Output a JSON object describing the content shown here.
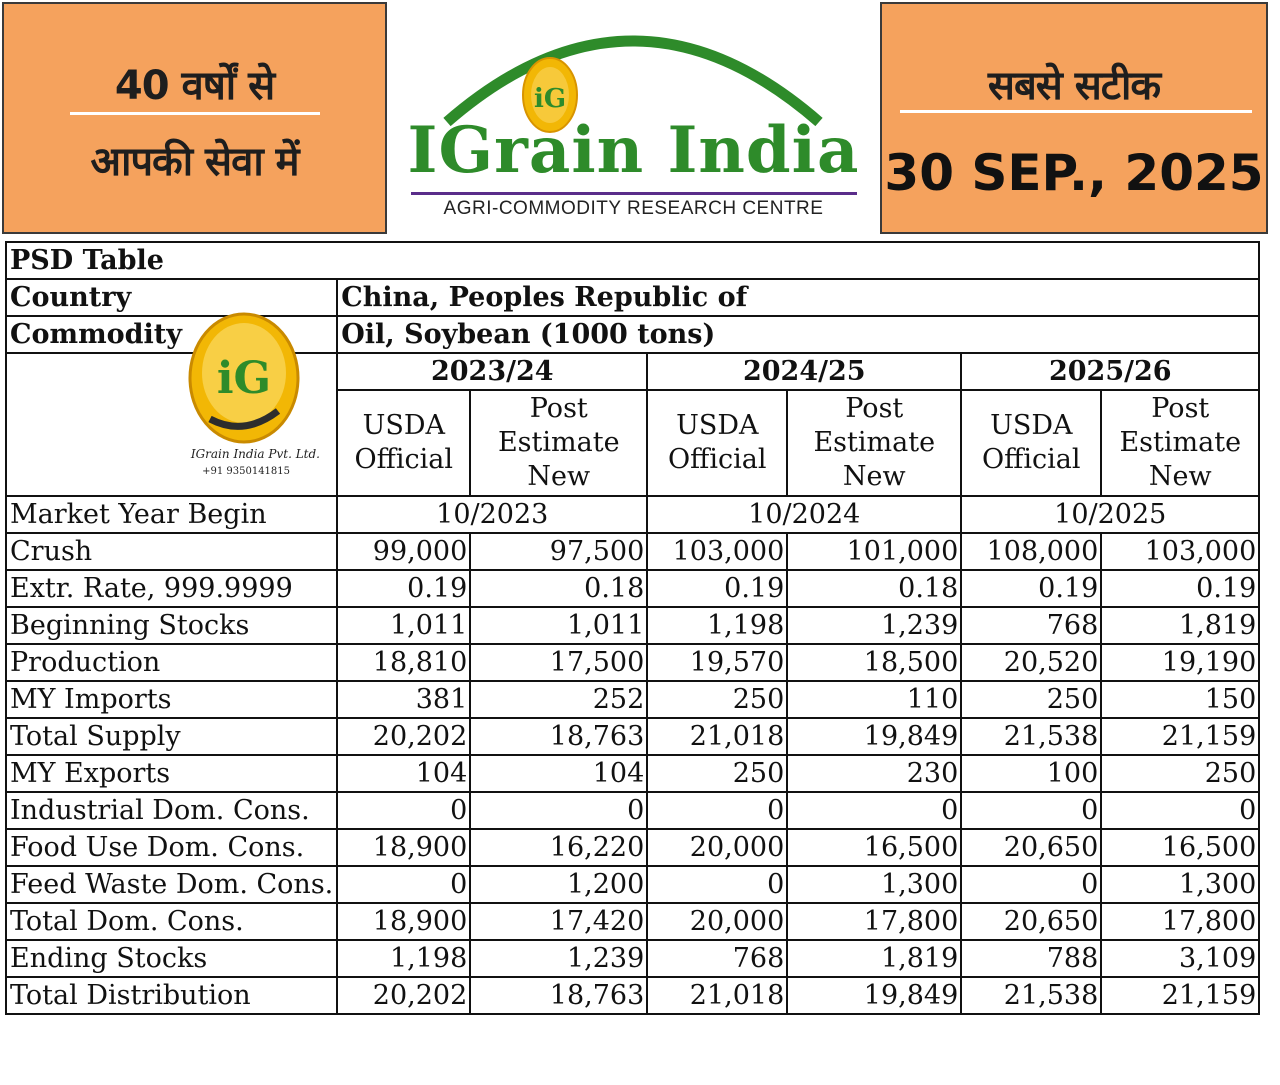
{
  "banner": {
    "left_line1": "40 वर्षों से",
    "left_line2": "आपकी सेवा में",
    "brand_name": "IGrain India",
    "brand_subtitle": "AGRI-COMMODITY RESEARCH CENTRE",
    "logo_mark": "iG",
    "right_line1": "सबसे सटीक",
    "date": "30 SEP., 2025",
    "colors": {
      "panel": "#f5a25d",
      "brand_green": "#2e8b2a",
      "logo_gold": "#f2b705"
    }
  },
  "watermark": {
    "logo_mark": "iG",
    "company": "IGrain India Pvt. Ltd.",
    "phone": "+91 9350141815"
  },
  "table": {
    "title": "PSD Table",
    "country_label": "Country",
    "country_value": "China, Peoples Republic of",
    "commodity_label": "Commodity",
    "commodity_value": "Oil, Soybean (1000 tons)",
    "years": [
      "2023/24",
      "2024/25",
      "2025/26"
    ],
    "col_usda": "USDA Official",
    "col_post": "Post Estimate New",
    "rows": [
      {
        "label": "Market Year Begin",
        "merged": [
          "10/2023",
          "10/2024",
          "10/2025"
        ]
      },
      {
        "label": "Crush",
        "values": [
          "99,000",
          "97,500",
          "103,000",
          "101,000",
          "108,000",
          "103,000"
        ]
      },
      {
        "label": "Extr. Rate, 999.9999",
        "values": [
          "0.19",
          "0.18",
          "0.19",
          "0.18",
          "0.19",
          "0.19"
        ]
      },
      {
        "label": "Beginning Stocks",
        "values": [
          "1,011",
          "1,011",
          "1,198",
          "1,239",
          "768",
          "1,819"
        ]
      },
      {
        "label": "Production",
        "values": [
          "18,810",
          "17,500",
          "19,570",
          "18,500",
          "20,520",
          "19,190"
        ]
      },
      {
        "label": "MY Imports",
        "values": [
          "381",
          "252",
          "250",
          "110",
          "250",
          "150"
        ]
      },
      {
        "label": "Total Supply",
        "values": [
          "20,202",
          "18,763",
          "21,018",
          "19,849",
          "21,538",
          "21,159"
        ]
      },
      {
        "label": "MY Exports",
        "values": [
          "104",
          "104",
          "250",
          "230",
          "100",
          "250"
        ]
      },
      {
        "label": "Industrial Dom. Cons.",
        "values": [
          "0",
          "0",
          "0",
          "0",
          "0",
          "0"
        ]
      },
      {
        "label": "Food Use Dom. Cons.",
        "values": [
          "18,900",
          "16,220",
          "20,000",
          "16,500",
          "20,650",
          "16,500"
        ]
      },
      {
        "label": "Feed Waste Dom. Cons.",
        "values": [
          "0",
          "1,200",
          "0",
          "1,300",
          "0",
          "1,300"
        ]
      },
      {
        "label": "Total Dom. Cons.",
        "values": [
          "18,900",
          "17,420",
          "20,000",
          "17,800",
          "20,650",
          "17,800"
        ]
      },
      {
        "label": "Ending Stocks",
        "values": [
          "1,198",
          "1,239",
          "768",
          "1,819",
          "788",
          "3,109"
        ]
      },
      {
        "label": "Total Distribution",
        "values": [
          "20,202",
          "18,763",
          "21,018",
          "19,849",
          "21,538",
          "21,159"
        ]
      }
    ]
  }
}
